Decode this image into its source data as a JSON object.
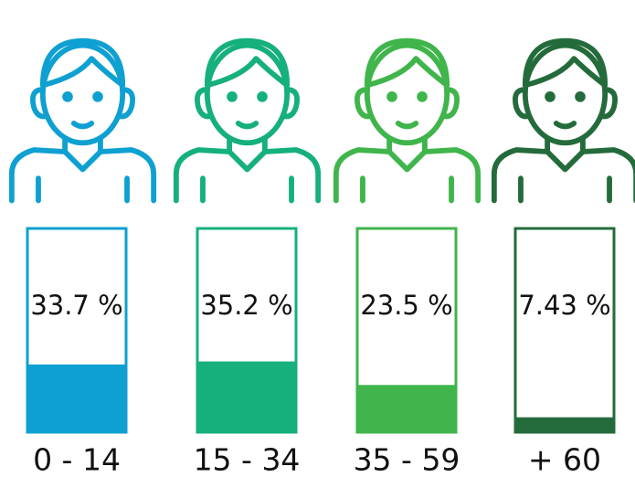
{
  "chart_data": {
    "type": "bar",
    "categories": [
      "0 - 14",
      "15 - 34",
      "35 - 59",
      "+ 60"
    ],
    "values": [
      33.7,
      35.2,
      23.5,
      7.43
    ],
    "value_labels": [
      "33.7 %",
      "35.2 %",
      "23.5 %",
      "7.43 %"
    ],
    "colors": [
      "#0fa0d2",
      "#15b07b",
      "#3fb54b",
      "#246b3b"
    ]
  }
}
